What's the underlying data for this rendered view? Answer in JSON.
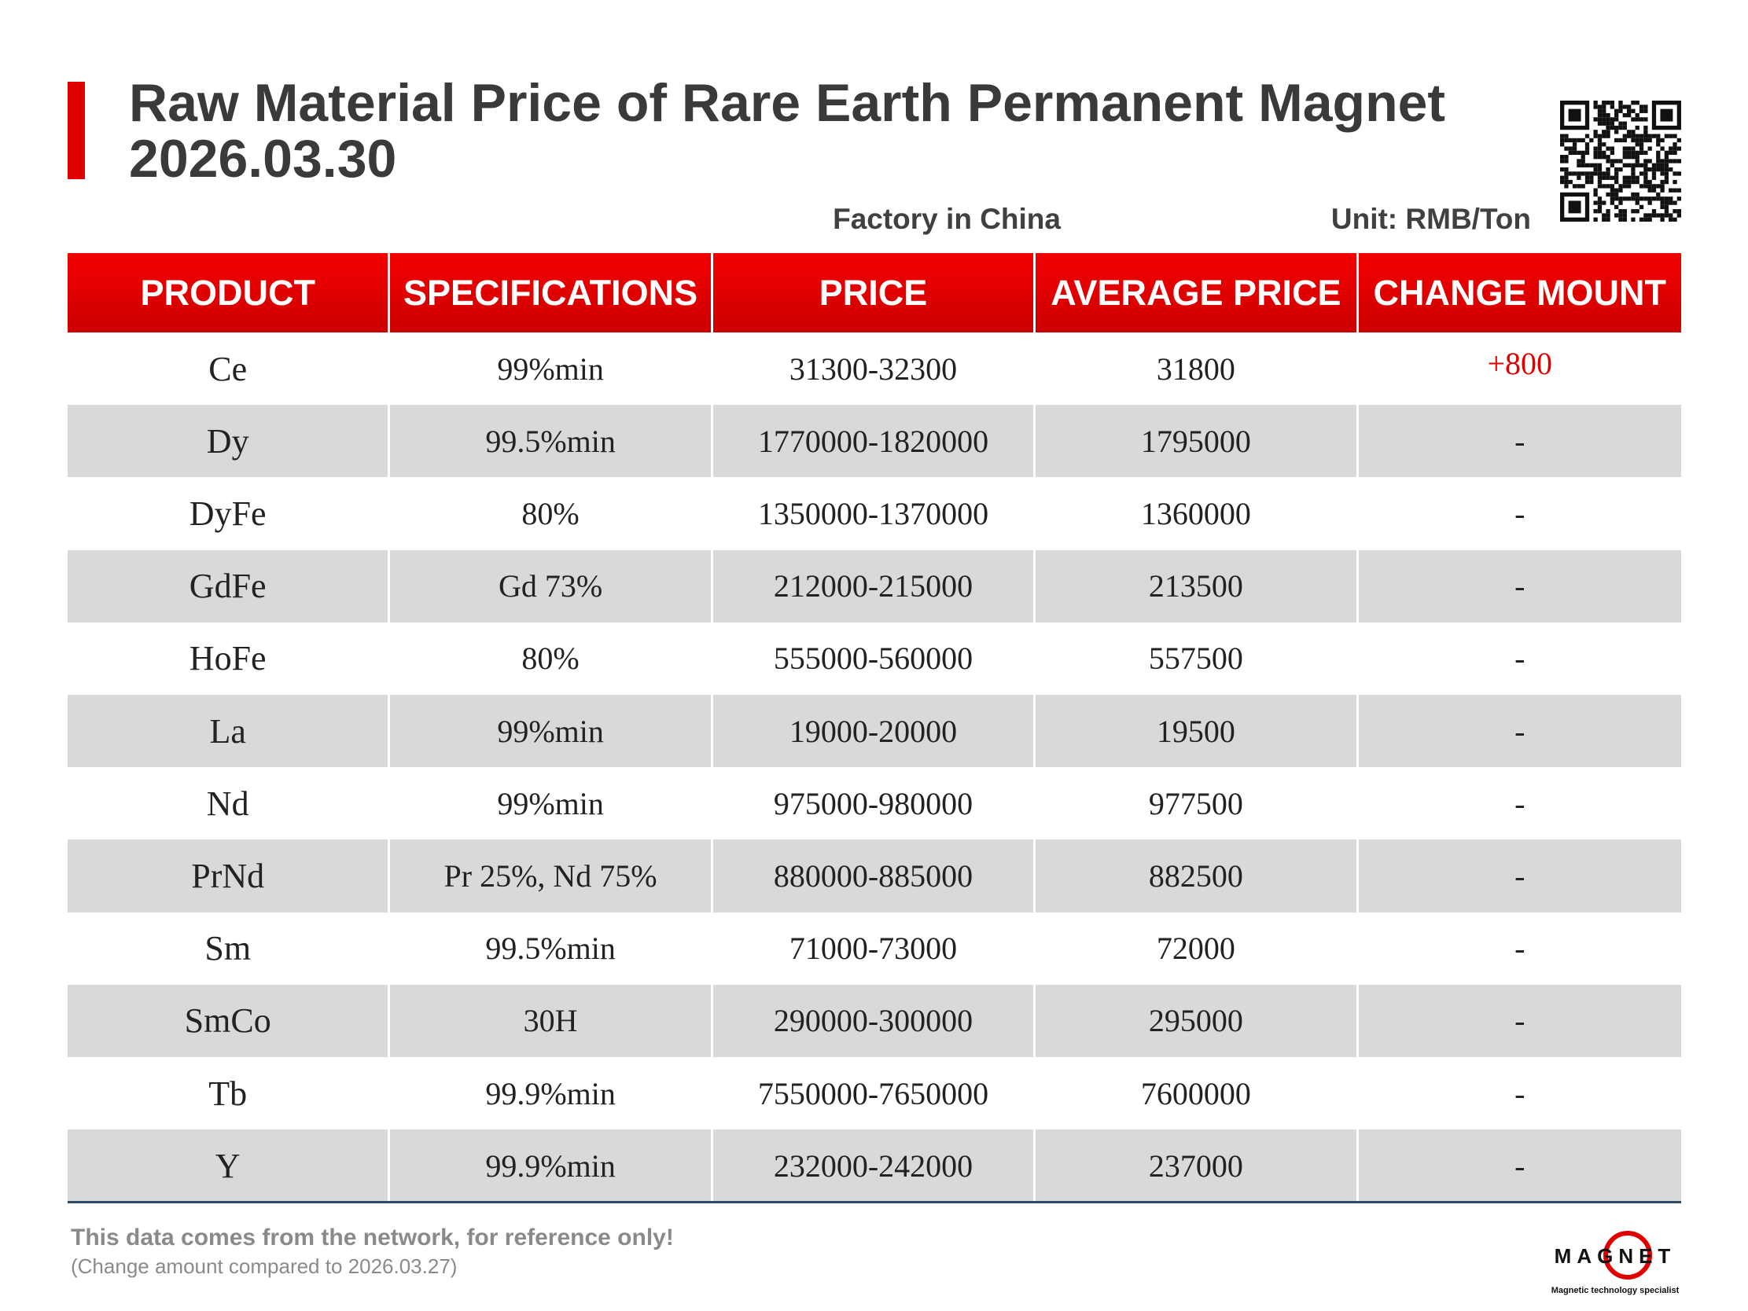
{
  "header": {
    "title_line1": "Raw Material Price of Rare Earth Permanent Magnet",
    "title_line2": "2026.03.30",
    "factory": "Factory in China",
    "unit": "Unit: RMB/Ton"
  },
  "table": {
    "columns": [
      "PRODUCT",
      "SPECIFICATIONS",
      "PRICE",
      "AVERAGE PRICE",
      "CHANGE MOUNT"
    ],
    "rows": [
      [
        "Ce",
        "99%min",
        "31300-32300",
        "31800",
        "+800"
      ],
      [
        "Dy",
        "99.5%min",
        "1770000-1820000",
        "1795000",
        "-"
      ],
      [
        "DyFe",
        "80%",
        "1350000-1370000",
        "1360000",
        "-"
      ],
      [
        "GdFe",
        "Gd 73%",
        "212000-215000",
        "213500",
        "-"
      ],
      [
        "HoFe",
        "80%",
        "555000-560000",
        "557500",
        "-"
      ],
      [
        "La",
        "99%min",
        "19000-20000",
        "19500",
        "-"
      ],
      [
        "Nd",
        "99%min",
        "975000-980000",
        "977500",
        "-"
      ],
      [
        "PrNd",
        "Pr 25%, Nd 75%",
        "880000-885000",
        "882500",
        "-"
      ],
      [
        "Sm",
        "99.5%min",
        "71000-73000",
        "72000",
        "-"
      ],
      [
        "SmCo",
        "30H",
        "290000-300000",
        "295000",
        "-"
      ],
      [
        "Tb",
        "99.9%min",
        "7550000-7650000",
        "7600000",
        "-"
      ],
      [
        "Y",
        "99.9%min",
        "232000-242000",
        "237000",
        "-"
      ]
    ]
  },
  "footer": {
    "note": "This data comes from the network, for reference only!",
    "comparison": "(Change amount compared to 2026.03.27)"
  },
  "logo": {
    "name": "MAGNET",
    "tagline": "Magnetic technology specialist"
  }
}
